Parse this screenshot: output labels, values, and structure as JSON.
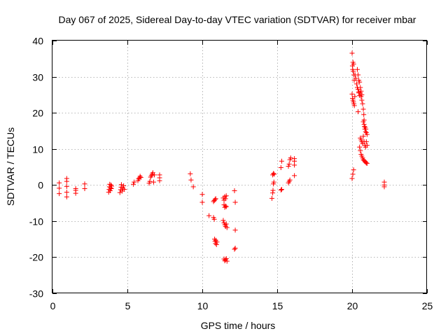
{
  "chart_data": {
    "type": "scatter",
    "title": "Day 067 of 2025, Sidereal Day-to-day VTEC variation (SDTVAR) for receiver mbar",
    "xlabel": "GPS time / hours",
    "ylabel": "SDTVAR / TECUs",
    "xlim": [
      0,
      25
    ],
    "ylim": [
      -30,
      40
    ],
    "xticks": [
      0,
      5,
      10,
      15,
      20,
      25
    ],
    "yticks": [
      -30,
      -20,
      -10,
      0,
      10,
      20,
      30,
      40
    ],
    "grid": true,
    "marker": "+",
    "series": [
      {
        "name": "SDTVAR",
        "color": "#ff0000",
        "points": [
          [
            0.45,
            -2.4
          ],
          [
            0.45,
            -0.9
          ],
          [
            0.45,
            0.6
          ],
          [
            0.95,
            -3.3
          ],
          [
            0.95,
            -2.0
          ],
          [
            0.95,
            -0.4
          ],
          [
            0.95,
            1.0
          ],
          [
            0.95,
            1.8
          ],
          [
            1.55,
            -2.3
          ],
          [
            1.55,
            -1.5
          ],
          [
            1.55,
            -1.0
          ],
          [
            2.15,
            -1.0
          ],
          [
            2.15,
            0.3
          ],
          [
            3.75,
            -2.0
          ],
          [
            3.78,
            -1.2
          ],
          [
            3.8,
            -0.5
          ],
          [
            3.82,
            0.2
          ],
          [
            3.85,
            -1.6
          ],
          [
            3.88,
            -0.8
          ],
          [
            3.9,
            0.0
          ],
          [
            3.93,
            -1.0
          ],
          [
            3.95,
            -0.3
          ],
          [
            4.5,
            -2.1
          ],
          [
            4.55,
            -1.3
          ],
          [
            4.58,
            -0.6
          ],
          [
            4.6,
            0.1
          ],
          [
            4.65,
            -1.7
          ],
          [
            4.7,
            -0.9
          ],
          [
            4.75,
            -0.2
          ],
          [
            4.8,
            -1.2
          ],
          [
            5.4,
            0.2
          ],
          [
            5.45,
            0.8
          ],
          [
            5.7,
            1.2
          ],
          [
            5.75,
            1.7
          ],
          [
            5.8,
            2.0
          ],
          [
            5.85,
            2.4
          ],
          [
            5.9,
            2.1
          ],
          [
            6.45,
            0.5
          ],
          [
            6.5,
            1.0
          ],
          [
            6.55,
            2.2
          ],
          [
            6.6,
            2.6
          ],
          [
            6.65,
            3.0
          ],
          [
            6.7,
            3.4
          ],
          [
            6.75,
            0.8
          ],
          [
            6.8,
            2.8
          ],
          [
            7.15,
            1.2
          ],
          [
            7.15,
            2.0
          ],
          [
            7.15,
            2.8
          ],
          [
            9.2,
            3.1
          ],
          [
            9.25,
            1.4
          ],
          [
            9.4,
            -0.5
          ],
          [
            10.0,
            -2.6
          ],
          [
            10.0,
            -4.8
          ],
          [
            10.45,
            -8.5
          ],
          [
            10.75,
            -9.0
          ],
          [
            10.8,
            -9.5
          ],
          [
            10.75,
            -4.6
          ],
          [
            10.8,
            -4.3
          ],
          [
            10.85,
            -4.0
          ],
          [
            10.9,
            -3.8
          ],
          [
            10.82,
            -15.0
          ],
          [
            10.85,
            -15.6
          ],
          [
            10.88,
            -16.2
          ],
          [
            10.9,
            -15.3
          ],
          [
            10.95,
            -16.5
          ],
          [
            10.98,
            -15.8
          ],
          [
            11.4,
            -3.6
          ],
          [
            11.45,
            -4.2
          ],
          [
            11.5,
            -3.2
          ],
          [
            11.55,
            -3.8
          ],
          [
            11.6,
            -3.0
          ],
          [
            11.45,
            -5.5
          ],
          [
            11.5,
            -6.2
          ],
          [
            11.55,
            -5.8
          ],
          [
            11.6,
            -6.0
          ],
          [
            11.4,
            -9.8
          ],
          [
            11.45,
            -10.5
          ],
          [
            11.5,
            -11.0
          ],
          [
            11.55,
            -11.5
          ],
          [
            11.6,
            -10.8
          ],
          [
            11.65,
            -11.8
          ],
          [
            11.45,
            -20.5
          ],
          [
            11.5,
            -21.0
          ],
          [
            11.55,
            -20.7
          ],
          [
            11.6,
            -20.4
          ],
          [
            11.65,
            -21.1
          ],
          [
            12.15,
            -1.6
          ],
          [
            12.2,
            -4.8
          ],
          [
            12.2,
            -12.5
          ],
          [
            12.15,
            -17.8
          ],
          [
            12.2,
            -17.5
          ],
          [
            14.65,
            -3.7
          ],
          [
            14.7,
            -2.2
          ],
          [
            14.72,
            -1.5
          ],
          [
            14.75,
            0.3
          ],
          [
            14.78,
            0.8
          ],
          [
            14.7,
            2.8
          ],
          [
            14.75,
            3.2
          ],
          [
            14.8,
            3.0
          ],
          [
            15.25,
            -1.4
          ],
          [
            15.3,
            -1.2
          ],
          [
            15.25,
            4.8
          ],
          [
            15.3,
            6.6
          ],
          [
            15.75,
            0.6
          ],
          [
            15.8,
            1.0
          ],
          [
            15.85,
            1.4
          ],
          [
            15.75,
            5.2
          ],
          [
            15.8,
            5.8
          ],
          [
            15.85,
            7.0
          ],
          [
            15.9,
            7.5
          ],
          [
            16.15,
            2.6
          ],
          [
            16.15,
            5.5
          ],
          [
            16.15,
            6.6
          ],
          [
            16.15,
            7.3
          ],
          [
            20.0,
            1.8
          ],
          [
            20.05,
            3.0
          ],
          [
            20.1,
            4.2
          ],
          [
            20.0,
            36.5
          ],
          [
            20.02,
            33.0
          ],
          [
            20.04,
            32.0
          ],
          [
            20.06,
            34.0
          ],
          [
            20.08,
            31.5
          ],
          [
            20.1,
            33.5
          ],
          [
            20.12,
            30.5
          ],
          [
            20.14,
            29.0
          ],
          [
            20.0,
            25.2
          ],
          [
            20.03,
            24.0
          ],
          [
            20.06,
            23.5
          ],
          [
            20.09,
            23.0
          ],
          [
            20.12,
            22.5
          ],
          [
            20.15,
            22.0
          ],
          [
            20.18,
            24.5
          ],
          [
            20.2,
            30.5
          ],
          [
            20.25,
            29.5
          ],
          [
            20.3,
            28.0
          ],
          [
            20.35,
            27.0
          ],
          [
            20.4,
            26.5
          ],
          [
            20.45,
            25.5
          ],
          [
            20.5,
            24.8
          ],
          [
            20.4,
            20.3
          ],
          [
            20.45,
            25.8
          ],
          [
            20.35,
            32.0
          ],
          [
            20.4,
            30.5
          ],
          [
            20.45,
            29.0
          ],
          [
            20.5,
            28.5
          ],
          [
            20.55,
            27.0
          ],
          [
            20.6,
            26.0
          ],
          [
            20.65,
            25.0
          ],
          [
            20.55,
            25.5
          ],
          [
            20.6,
            24.5
          ],
          [
            20.65,
            23.5
          ],
          [
            20.7,
            22.5
          ],
          [
            20.75,
            21.0
          ],
          [
            20.78,
            19.5
          ],
          [
            20.8,
            18.0
          ],
          [
            20.75,
            17.5
          ],
          [
            20.8,
            16.8
          ],
          [
            20.82,
            16.2
          ],
          [
            20.85,
            15.5
          ],
          [
            20.88,
            16.0
          ],
          [
            20.9,
            14.8
          ],
          [
            20.92,
            15.5
          ],
          [
            20.95,
            14.5
          ],
          [
            21.0,
            14.0
          ],
          [
            20.55,
            13.0
          ],
          [
            20.6,
            12.5
          ],
          [
            20.65,
            12.0
          ],
          [
            20.7,
            11.5
          ],
          [
            20.75,
            13.5
          ],
          [
            20.8,
            12.0
          ],
          [
            20.85,
            11.0
          ],
          [
            20.9,
            10.5
          ],
          [
            20.95,
            12.0
          ],
          [
            21.0,
            11.0
          ],
          [
            20.5,
            10.5
          ],
          [
            20.55,
            9.5
          ],
          [
            20.6,
            8.5
          ],
          [
            20.65,
            8.0
          ],
          [
            20.7,
            7.5
          ],
          [
            20.75,
            7.0
          ],
          [
            20.8,
            6.8
          ],
          [
            20.85,
            6.5
          ],
          [
            20.9,
            6.3
          ],
          [
            20.95,
            6.1
          ],
          [
            21.0,
            6.0
          ],
          [
            22.15,
            -0.5
          ],
          [
            22.15,
            0.0
          ],
          [
            22.15,
            0.8
          ]
        ]
      }
    ]
  }
}
